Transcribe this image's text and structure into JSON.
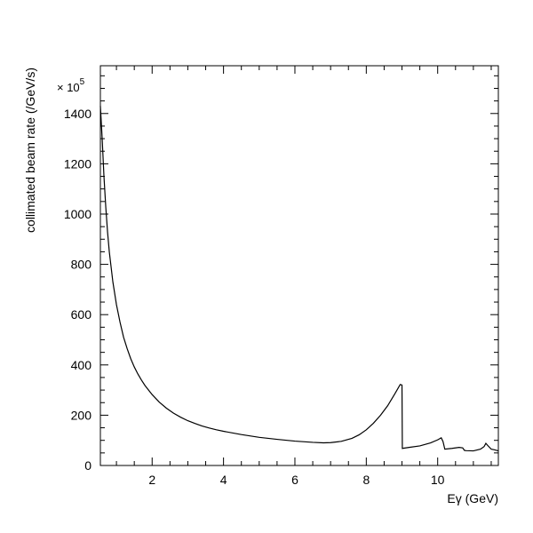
{
  "chart_data": {
    "type": "line",
    "title": "",
    "xlabel": "Eγ (GeV)",
    "ylabel": "collimated beam rate (/GeV/s)",
    "y_scale_label": {
      "prefix": "× 10",
      "exponent": "5"
    },
    "xlim": [
      0.55,
      11.7
    ],
    "ylim": [
      0,
      1590
    ],
    "x_ticks": [
      2,
      4,
      6,
      8,
      10
    ],
    "y_ticks": [
      0,
      200,
      400,
      600,
      800,
      1000,
      1200,
      1400
    ],
    "grid": false,
    "legend": "none",
    "color": "#000000",
    "series": [
      {
        "x": [
          0.55,
          0.6,
          0.65,
          0.7,
          0.75,
          0.8,
          0.9,
          1.0,
          1.1,
          1.2,
          1.3,
          1.4,
          1.5,
          1.6,
          1.7,
          1.8,
          2.0,
          2.2,
          2.4,
          2.6,
          2.8,
          3.0,
          3.2,
          3.4,
          3.6,
          3.8,
          4.0,
          4.5,
          5.0,
          5.5,
          6.0,
          6.5,
          6.8,
          7.0,
          7.3,
          7.6,
          7.8,
          8.0,
          8.2,
          8.4,
          8.6,
          8.8,
          8.95,
          9.0,
          9.01,
          9.2,
          9.5,
          9.8,
          10.0,
          10.1,
          10.15,
          10.2,
          10.4,
          10.6,
          10.7,
          10.75,
          10.8,
          11.0,
          11.2,
          11.3,
          11.35,
          11.4,
          11.5,
          11.6,
          11.7
        ],
        "y": [
          1430,
          1300,
          1150,
          1030,
          930,
          850,
          730,
          640,
          570,
          510,
          465,
          425,
          392,
          364,
          340,
          318,
          282,
          252,
          228,
          208,
          192,
          178,
          167,
          157,
          149,
          142,
          136,
          123,
          112,
          104,
          97,
          92,
          90,
          91,
          96,
          108,
          122,
          142,
          168,
          200,
          238,
          285,
          322,
          320,
          68,
          72,
          78,
          90,
          102,
          110,
          95,
          65,
          68,
          72,
          70,
          60,
          59,
          58,
          65,
          75,
          88,
          80,
          65,
          62,
          58
        ]
      }
    ]
  }
}
